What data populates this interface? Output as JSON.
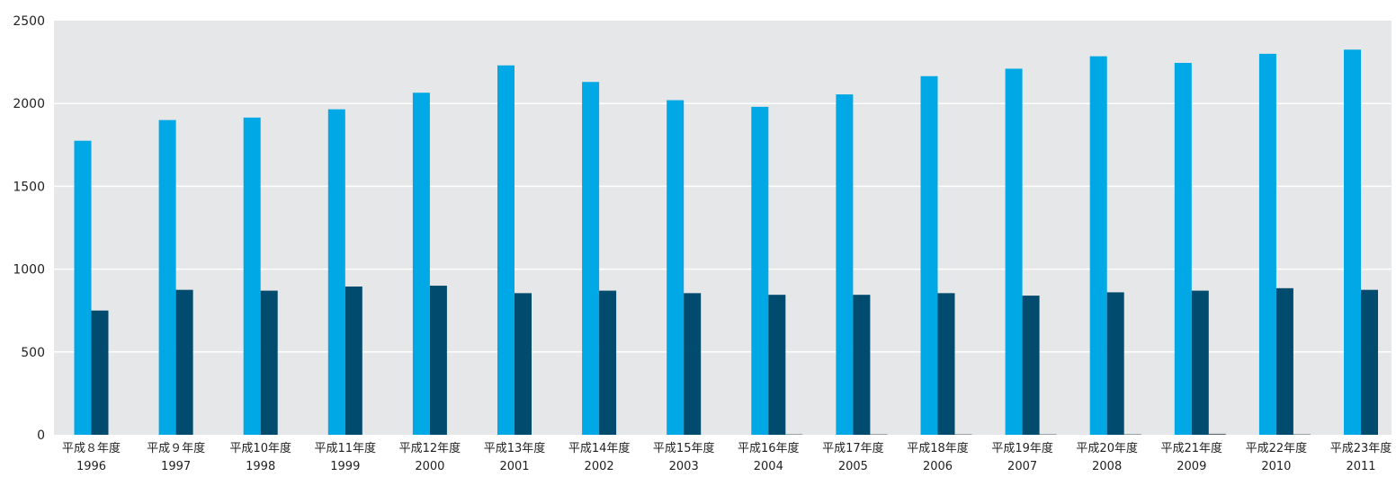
{
  "chart_data": {
    "type": "bar",
    "title": "",
    "xlabel": "",
    "ylabel": "",
    "ylim": [
      0,
      2500
    ],
    "yticks": [
      0,
      500,
      1000,
      1500,
      2000,
      2500
    ],
    "grid": true,
    "legend": "none",
    "categories": [
      [
        "平成８年度",
        "1996"
      ],
      [
        "平成９年度",
        "1997"
      ],
      [
        "平成10年度",
        "1998"
      ],
      [
        "平成11年度",
        "1999"
      ],
      [
        "平成12年度",
        "2000"
      ],
      [
        "平成13年度",
        "2001"
      ],
      [
        "平成14年度",
        "2002"
      ],
      [
        "平成15年度",
        "2003"
      ],
      [
        "平成16年度",
        "2004"
      ],
      [
        "平成17年度",
        "2005"
      ],
      [
        "平成18年度",
        "2006"
      ],
      [
        "平成19年度",
        "2007"
      ],
      [
        "平成20年度",
        "2008"
      ],
      [
        "平成21年度",
        "2009"
      ],
      [
        "平成22年度",
        "2010"
      ],
      [
        "平成23年度",
        "2011"
      ]
    ],
    "series": [
      {
        "color": "#00a8e6",
        "values": [
          1775,
          1900,
          1915,
          1965,
          2065,
          2230,
          2130,
          2020,
          1980,
          2055,
          2165,
          2210,
          2285,
          2245,
          2300,
          2325
        ]
      },
      {
        "color": "#004b6e",
        "values": [
          750,
          875,
          870,
          895,
          900,
          855,
          870,
          855,
          845,
          845,
          855,
          840,
          860,
          870,
          885,
          875
        ]
      },
      {
        "color": "#5a6b73",
        "values": [
          0,
          0,
          0,
          0,
          0,
          0,
          0,
          0,
          3,
          3,
          3,
          3,
          3,
          6,
          3,
          0
        ]
      }
    ],
    "colors": {
      "plot_background": "#e6e7e8",
      "gridline": "#ffffff"
    }
  }
}
